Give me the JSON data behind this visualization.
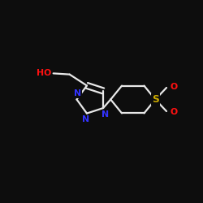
{
  "bg_color": "#0d0d0d",
  "bond_color": "#e8e8e8",
  "bond_width": 1.6,
  "N_color": "#3333ff",
  "O_color": "#ff1111",
  "S_color": "#ccaa00",
  "HO_color": "#ff1111",
  "figsize": [
    2.5,
    2.5
  ],
  "dpi": 100,
  "xlim": [
    0,
    10
  ],
  "ylim": [
    0,
    10
  ]
}
